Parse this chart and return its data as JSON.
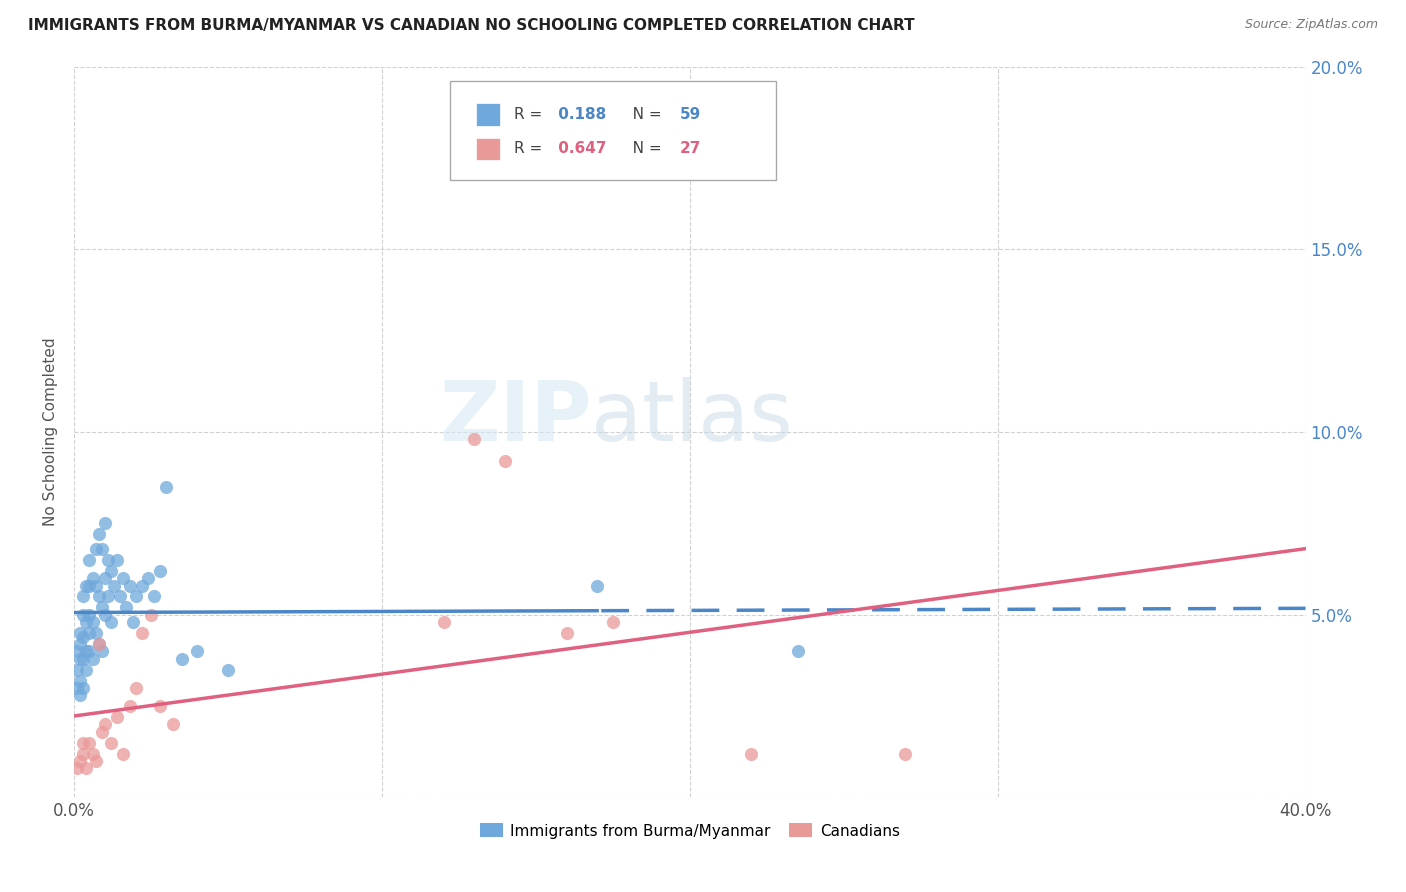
{
  "title": "IMMIGRANTS FROM BURMA/MYANMAR VS CANADIAN NO SCHOOLING COMPLETED CORRELATION CHART",
  "source": "Source: ZipAtlas.com",
  "ylabel": "No Schooling Completed",
  "xlim": [
    0.0,
    0.4
  ],
  "ylim": [
    0.0,
    0.2
  ],
  "yticks": [
    0.0,
    0.05,
    0.1,
    0.15,
    0.2
  ],
  "xticks": [
    0.0,
    0.1,
    0.2,
    0.3,
    0.4
  ],
  "blue_R": 0.188,
  "blue_N": 59,
  "pink_R": 0.647,
  "pink_N": 27,
  "blue_color": "#6fa8dc",
  "pink_color": "#ea9999",
  "blue_line_color": "#4a86c8",
  "pink_line_color": "#e06080",
  "watermark_zip": "ZIP",
  "watermark_atlas": "atlas",
  "legend_labels": [
    "Immigrants from Burma/Myanmar",
    "Canadians"
  ],
  "blue_scatter_x": [
    0.001,
    0.001,
    0.001,
    0.002,
    0.002,
    0.002,
    0.002,
    0.002,
    0.003,
    0.003,
    0.003,
    0.003,
    0.003,
    0.004,
    0.004,
    0.004,
    0.004,
    0.005,
    0.005,
    0.005,
    0.005,
    0.005,
    0.006,
    0.006,
    0.006,
    0.007,
    0.007,
    0.007,
    0.008,
    0.008,
    0.008,
    0.009,
    0.009,
    0.009,
    0.01,
    0.01,
    0.01,
    0.011,
    0.011,
    0.012,
    0.012,
    0.013,
    0.014,
    0.015,
    0.016,
    0.017,
    0.018,
    0.019,
    0.02,
    0.022,
    0.024,
    0.026,
    0.028,
    0.03,
    0.035,
    0.04,
    0.05,
    0.17,
    0.235
  ],
  "blue_scatter_y": [
    0.03,
    0.035,
    0.04,
    0.028,
    0.032,
    0.038,
    0.042,
    0.045,
    0.03,
    0.038,
    0.044,
    0.05,
    0.055,
    0.035,
    0.04,
    0.048,
    0.058,
    0.04,
    0.045,
    0.05,
    0.058,
    0.065,
    0.038,
    0.048,
    0.06,
    0.045,
    0.058,
    0.068,
    0.042,
    0.055,
    0.072,
    0.04,
    0.052,
    0.068,
    0.05,
    0.06,
    0.075,
    0.055,
    0.065,
    0.048,
    0.062,
    0.058,
    0.065,
    0.055,
    0.06,
    0.052,
    0.058,
    0.048,
    0.055,
    0.058,
    0.06,
    0.055,
    0.062,
    0.085,
    0.038,
    0.04,
    0.035,
    0.058,
    0.04
  ],
  "pink_scatter_x": [
    0.001,
    0.002,
    0.003,
    0.003,
    0.004,
    0.005,
    0.006,
    0.007,
    0.008,
    0.009,
    0.01,
    0.012,
    0.014,
    0.016,
    0.018,
    0.02,
    0.022,
    0.025,
    0.028,
    0.032,
    0.12,
    0.13,
    0.14,
    0.16,
    0.175,
    0.22,
    0.27
  ],
  "pink_scatter_y": [
    0.008,
    0.01,
    0.012,
    0.015,
    0.008,
    0.015,
    0.012,
    0.01,
    0.042,
    0.018,
    0.02,
    0.015,
    0.022,
    0.012,
    0.025,
    0.03,
    0.045,
    0.05,
    0.025,
    0.02,
    0.048,
    0.098,
    0.092,
    0.045,
    0.048,
    0.012,
    0.012
  ]
}
